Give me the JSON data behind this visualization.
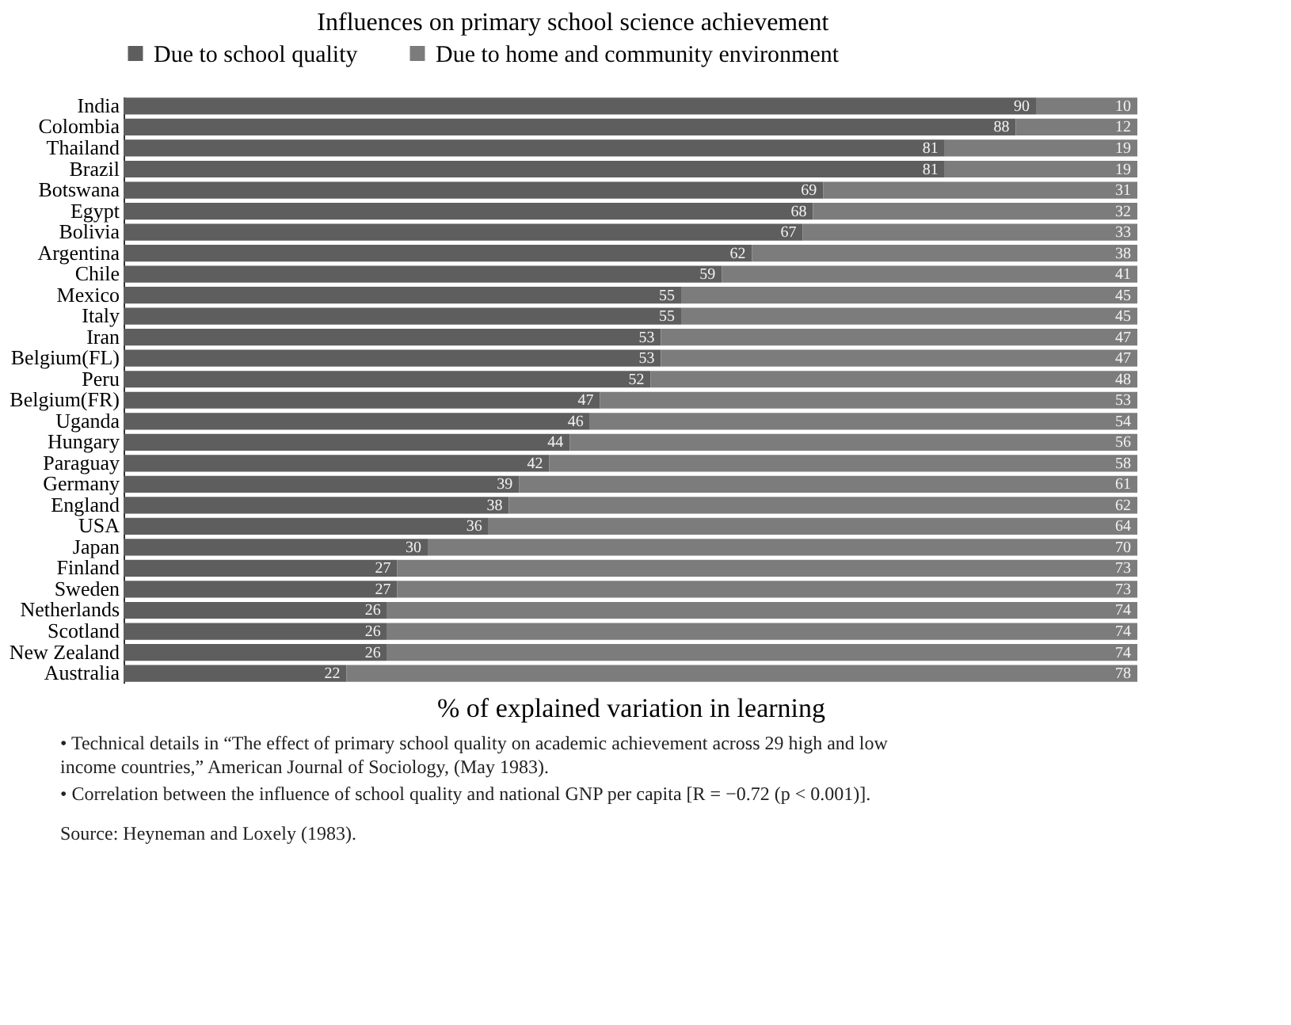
{
  "chart_data": {
    "type": "bar",
    "orientation": "horizontal",
    "stacked": true,
    "title": "Influences on primary school science achievement",
    "xlabel": "% of explained variation in learning",
    "categories": [
      "India",
      "Colombia",
      "Thailand",
      "Brazil",
      "Botswana",
      "Egypt",
      "Bolivia",
      "Argentina",
      "Chile",
      "Mexico",
      "Italy",
      "Iran",
      "Belgium(FL)",
      "Peru",
      "Belgium(FR)",
      "Uganda",
      "Hungary",
      "Paraguay",
      "Germany",
      "England",
      "USA",
      "Japan",
      "Finland",
      "Sweden",
      "Netherlands",
      "Scotland",
      "New Zealand",
      "Australia"
    ],
    "series": [
      {
        "name": "Due to school quality",
        "color": "#5e5e5e",
        "values": [
          90,
          88,
          81,
          81,
          69,
          68,
          67,
          62,
          59,
          55,
          55,
          53,
          53,
          52,
          47,
          46,
          44,
          42,
          39,
          38,
          36,
          30,
          27,
          27,
          26,
          26,
          26,
          22
        ]
      },
      {
        "name": "Due to home and community environment",
        "color": "#7c7c7c",
        "values": [
          10,
          12,
          19,
          19,
          31,
          32,
          33,
          38,
          41,
          45,
          45,
          47,
          47,
          48,
          53,
          54,
          56,
          58,
          61,
          62,
          64,
          70,
          73,
          73,
          74,
          74,
          74,
          78
        ]
      }
    ],
    "xlim": [
      0,
      100
    ],
    "data_labels": true,
    "legend": "top",
    "tick_labels": "y",
    "annotations": [
      "• Technical details in “The effect of primary school quality on academic achievement across 29 high and low income countries,” American Journal of Sociology, (May 1983).",
      "• Correlation between the influence of school quality and national GNP per capita [R = −0.72 (p < 0.001)].",
      "Source:  Heyneman and Loxely (1983)."
    ]
  }
}
